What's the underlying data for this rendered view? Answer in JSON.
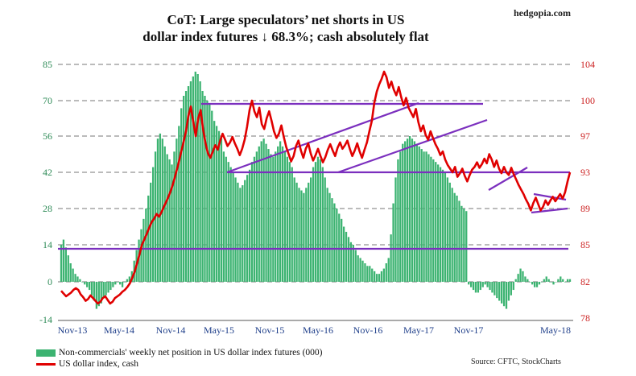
{
  "title_line1": "CoT: Large speculators’ net shorts in US",
  "title_line2": "dollar index futures ↓ 68.3%; cash absolutely flat",
  "watermark": "hedgopia.com",
  "source": "Source: CFTC, StockCharts",
  "colors": {
    "bars": "#3cb371",
    "line": "#e00000",
    "channel": "#7b2fbe",
    "grid": "#777777"
  },
  "chart_data": {
    "type": "bar+line",
    "x_ticks": [
      "Nov-13",
      "May-14",
      "Nov-14",
      "May-15",
      "Nov-15",
      "May-16",
      "Nov-16",
      "May-17",
      "Nov-17",
      "May-18"
    ],
    "left_axis": {
      "ticks": [
        -14,
        0,
        14,
        28,
        42,
        56,
        70,
        85
      ],
      "range": [
        -14,
        85
      ]
    },
    "right_axis": {
      "ticks": [
        78,
        82,
        85,
        89,
        93,
        97,
        100,
        104
      ],
      "range": [
        78,
        104
      ]
    },
    "grid": true,
    "legend_position": "bottom-left",
    "series": [
      {
        "name": "Non-commercials' weekly net position in US dollar index futures (000)",
        "kind": "bar",
        "axis": "left",
        "frequency": "weekly from Nov-13",
        "values": [
          14,
          16,
          13,
          10,
          7,
          5,
          3,
          2,
          1,
          0,
          -1,
          -2,
          -3,
          -5,
          -7,
          -10,
          -9,
          -8,
          -6,
          -5,
          -4,
          -3,
          -2,
          -1,
          0,
          -1,
          -2,
          0,
          1,
          2,
          4,
          8,
          12,
          16,
          20,
          24,
          28,
          33,
          38,
          44,
          50,
          55,
          57,
          55,
          52,
          49,
          47,
          45,
          50,
          55,
          60,
          67,
          72,
          74,
          76,
          78,
          80,
          82,
          81,
          78,
          74,
          72,
          70,
          69,
          66,
          62,
          60,
          58,
          55,
          50,
          48,
          46,
          44,
          42,
          40,
          38,
          36,
          37,
          39,
          41,
          43,
          46,
          48,
          50,
          52,
          54,
          55,
          53,
          51,
          49,
          48,
          50,
          52,
          54,
          52,
          50,
          48,
          46,
          44,
          40,
          38,
          36,
          35,
          34,
          36,
          38,
          40,
          44,
          46,
          48,
          47,
          44,
          40,
          36,
          34,
          32,
          30,
          28,
          26,
          24,
          21,
          19,
          17,
          15,
          14,
          12,
          10,
          9,
          8,
          7,
          6,
          6,
          5,
          4,
          3,
          3,
          4,
          5,
          7,
          9,
          18,
          30,
          40,
          47,
          50,
          53,
          54,
          55,
          56,
          55,
          54,
          53,
          52,
          51,
          50,
          50,
          49,
          48,
          47,
          46,
          45,
          44,
          43,
          42,
          40,
          38,
          36,
          34,
          33,
          31,
          29,
          28,
          27,
          -1,
          -2,
          -3,
          -4,
          -4,
          -3,
          -2,
          -1,
          -2,
          -3,
          -4,
          -5,
          -6,
          -7,
          -8,
          -9,
          -10,
          -7,
          -5,
          -3,
          1,
          3,
          5,
          4,
          2,
          1,
          0,
          -1,
          -2,
          -2,
          -1,
          0,
          1,
          2,
          1,
          0,
          -1,
          0,
          1,
          2,
          1,
          0,
          1,
          1
        ]
      },
      {
        "name": "US dollar index, cash",
        "kind": "line",
        "axis": "right",
        "frequency": "weekly from Nov-13",
        "values": [
          81.0,
          80.7,
          80.4,
          80.6,
          80.8,
          81.1,
          81.3,
          81.1,
          80.6,
          80.3,
          79.9,
          80.1,
          80.5,
          80.2,
          79.9,
          79.6,
          79.8,
          80.2,
          80.4,
          80.0,
          79.6,
          79.8,
          80.2,
          80.4,
          80.6,
          80.9,
          81.1,
          81.4,
          81.8,
          82.3,
          82.8,
          83.5,
          84.2,
          85.0,
          85.6,
          86.2,
          86.9,
          87.5,
          87.9,
          88.4,
          88.1,
          88.6,
          89.2,
          89.8,
          90.4,
          91.1,
          92.0,
          93.0,
          94.0,
          95.2,
          96.3,
          97.4,
          98.7,
          99.5,
          98.2,
          97.0,
          98.5,
          99.2,
          97.6,
          96.2,
          95.1,
          94.6,
          95.3,
          96.0,
          95.5,
          96.5,
          97.2,
          96.6,
          95.9,
          96.3,
          96.9,
          96.2,
          95.6,
          94.9,
          95.6,
          96.6,
          97.8,
          99.2,
          100.0,
          99.1,
          98.6,
          99.4,
          98.0,
          97.6,
          98.5,
          99.1,
          98.3,
          97.4,
          96.8,
          97.2,
          97.9,
          96.9,
          95.8,
          95.0,
          94.2,
          94.8,
          95.9,
          96.5,
          95.4,
          94.6,
          95.6,
          96.2,
          95.1,
          94.3,
          94.9,
          95.6,
          94.8,
          94.1,
          94.7,
          95.5,
          96.1,
          95.4,
          94.8,
          95.7,
          96.3,
          95.6,
          96.0,
          96.5,
          95.6,
          94.8,
          95.4,
          96.2,
          95.3,
          94.6,
          95.5,
          96.3,
          97.4,
          98.3,
          99.8,
          101.0,
          101.8,
          102.4,
          103.2,
          102.6,
          101.4,
          102.1,
          101.2,
          100.6,
          101.5,
          100.4,
          99.6,
          100.3,
          99.4,
          99.0,
          98.6,
          99.3,
          98.2,
          97.4,
          97.9,
          97.1,
          96.6,
          97.4,
          96.8,
          96.1,
          95.6,
          94.9,
          95.3,
          94.4,
          93.8,
          93.4,
          93.0,
          93.6,
          92.5,
          92.9,
          93.4,
          92.6,
          92.0,
          92.7,
          93.3,
          93.6,
          94.1,
          93.5,
          93.9,
          94.5,
          94.0,
          95.0,
          94.4,
          93.6,
          94.3,
          93.4,
          92.9,
          93.6,
          93.0,
          92.7,
          93.5,
          92.8,
          92.2,
          91.6,
          91.1,
          90.6,
          90.0,
          89.5,
          88.8,
          89.6,
          90.2,
          89.5,
          88.8,
          89.2,
          89.9,
          89.4,
          89.9,
          90.3,
          89.8,
          90.2,
          90.6,
          90.1,
          90.8,
          92.0,
          93.0
        ]
      }
    ]
  },
  "legend": {
    "bars_label": "Non-commercials' weekly net position in US dollar index futures (000)",
    "line_label": "US dollar index, cash"
  }
}
